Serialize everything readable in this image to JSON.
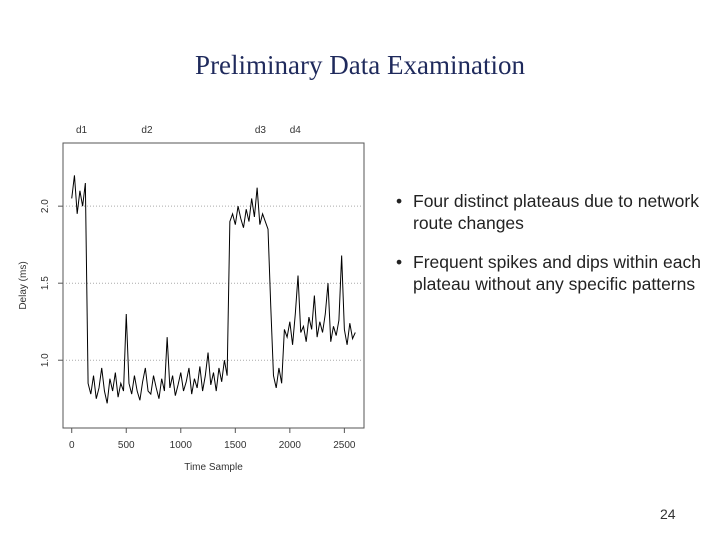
{
  "title": "Preliminary Data Examination",
  "bullets": [
    "Four distinct plateaus due to network route changes",
    "Frequent spikes and dips within each plateau without any specific patterns"
  ],
  "page_number": "24",
  "chart_data": {
    "type": "line",
    "xlabel": "Time Sample",
    "ylabel": "Delay (ms)",
    "color": "#000000",
    "annotations": [
      {
        "label": "d1",
        "x": 90
      },
      {
        "label": "d2",
        "x": 690
      },
      {
        "label": "d3",
        "x": 1730
      },
      {
        "label": "d4",
        "x": 2050
      }
    ],
    "x": [
      0,
      25,
      50,
      75,
      100,
      125,
      150,
      175,
      200,
      225,
      250,
      275,
      300,
      325,
      350,
      375,
      400,
      425,
      450,
      475,
      500,
      525,
      550,
      575,
      600,
      625,
      650,
      675,
      700,
      725,
      750,
      775,
      800,
      825,
      850,
      875,
      900,
      925,
      950,
      975,
      1000,
      1025,
      1050,
      1075,
      1100,
      1125,
      1150,
      1175,
      1200,
      1225,
      1250,
      1275,
      1300,
      1325,
      1350,
      1375,
      1400,
      1425,
      1450,
      1475,
      1500,
      1525,
      1550,
      1575,
      1600,
      1625,
      1650,
      1675,
      1700,
      1725,
      1750,
      1775,
      1800,
      1825,
      1850,
      1875,
      1900,
      1925,
      1950,
      1975,
      2000,
      2025,
      2050,
      2075,
      2100,
      2125,
      2150,
      2175,
      2200,
      2225,
      2250,
      2275,
      2300,
      2325,
      2350,
      2375,
      2400,
      2425,
      2450,
      2475,
      2500,
      2525,
      2550,
      2575,
      2600
    ],
    "series": [
      {
        "name": "Delay",
        "values": [
          2.05,
          2.2,
          1.95,
          2.1,
          2.0,
          2.15,
          0.85,
          0.78,
          0.9,
          0.75,
          0.82,
          0.95,
          0.8,
          0.72,
          0.88,
          0.8,
          0.92,
          0.76,
          0.85,
          0.8,
          1.3,
          0.85,
          0.78,
          0.9,
          0.8,
          0.74,
          0.86,
          0.95,
          0.8,
          0.78,
          0.9,
          0.82,
          0.75,
          0.88,
          0.8,
          1.15,
          0.82,
          0.9,
          0.77,
          0.84,
          0.92,
          0.8,
          0.86,
          0.95,
          0.78,
          0.88,
          0.82,
          0.96,
          0.8,
          0.9,
          1.05,
          0.84,
          0.92,
          0.8,
          0.95,
          0.86,
          1.0,
          0.9,
          1.9,
          1.95,
          1.88,
          2.0,
          1.92,
          1.86,
          1.98,
          1.9,
          2.05,
          1.93,
          2.12,
          1.88,
          1.95,
          1.9,
          1.85,
          1.35,
          0.9,
          0.82,
          0.95,
          0.85,
          1.2,
          1.15,
          1.25,
          1.1,
          1.3,
          1.55,
          1.18,
          1.22,
          1.12,
          1.28,
          1.2,
          1.42,
          1.15,
          1.25,
          1.18,
          1.3,
          1.5,
          1.12,
          1.22,
          1.16,
          1.26,
          1.68,
          1.2,
          1.1,
          1.24,
          1.14,
          1.18
        ]
      }
    ],
    "xlim": [
      -80,
      2680
    ],
    "ylim": [
      0.56,
      2.41
    ],
    "xticks": [
      0,
      500,
      1000,
      1500,
      2000,
      2500
    ],
    "yticks": [
      {
        "value": 1,
        "label": "1.0"
      },
      {
        "value": 1.5,
        "label": "1.5"
      },
      {
        "value": 2,
        "label": "2.0"
      }
    ],
    "grid": true
  }
}
